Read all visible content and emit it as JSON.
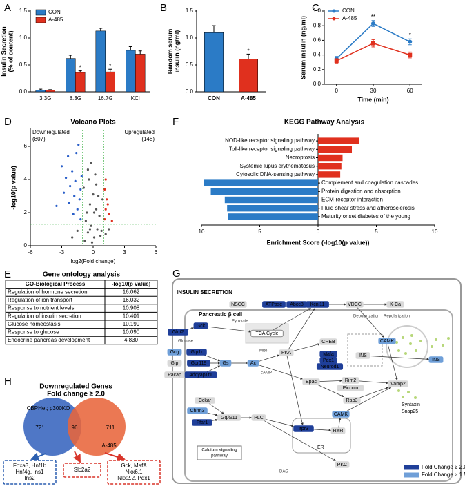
{
  "chart_data": [
    {
      "label": "A",
      "type": "bar",
      "ylabel": [
        "Insulin Secretion",
        "(% of content)"
      ],
      "categories": [
        "3.3G",
        "8.3G",
        "16.7G",
        "KCl"
      ],
      "series": [
        {
          "name": "CON",
          "color": "#2b7bc6",
          "values": [
            0.03,
            0.62,
            1.13,
            0.77
          ],
          "errors": [
            0.02,
            0.06,
            0.05,
            0.07
          ]
        },
        {
          "name": "A-485",
          "color": "#e0301e",
          "values": [
            0.03,
            0.36,
            0.37,
            0.7
          ],
          "errors": [
            0.01,
            0.03,
            0.05,
            0.06
          ]
        }
      ],
      "ylim": [
        0,
        1.5
      ],
      "yticks": [
        {
          "value": 0,
          "label": "0.0"
        },
        {
          "value": 0.5,
          "label": "0.5"
        },
        {
          "value": 1,
          "label": "1.0"
        },
        {
          "value": 1.5,
          "label": "1.5"
        }
      ],
      "legend": "upper left",
      "annotations": [
        {
          "text": "*",
          "category": "8.3G",
          "series": "A-485"
        },
        {
          "text": "*",
          "category": "16.7G",
          "series": "A-485"
        }
      ]
    },
    {
      "label": "B",
      "type": "bar",
      "ylabel": [
        "Random serum",
        "insulin (ng/ml)"
      ],
      "categories": [
        "CON",
        "A-485"
      ],
      "values": [
        1.1,
        0.61
      ],
      "errors": [
        0.13,
        0.09
      ],
      "colors": [
        "#2b7bc6",
        "#e0301e"
      ],
      "ylim": [
        0,
        1.5
      ],
      "yticks": [
        {
          "value": 0,
          "label": "0.0"
        },
        {
          "value": 0.5,
          "label": "0.5"
        },
        {
          "value": 1,
          "label": "1.0"
        },
        {
          "value": 1.5,
          "label": "1.5"
        }
      ],
      "annotations": [
        {
          "text": "*",
          "category": "A-485"
        }
      ]
    },
    {
      "label": "C",
      "type": "line",
      "ylabel": "Serum insulin (ng/ml)",
      "xlabel": "Time (min)",
      "x": [
        0,
        30,
        60
      ],
      "xlim": [
        -10,
        70
      ],
      "xticks": [
        0,
        30,
        60
      ],
      "series": [
        {
          "name": "CON",
          "color": "#2b7bc6",
          "values": [
            0.35,
            0.83,
            0.58
          ],
          "errors": [
            0.03,
            0.04,
            0.04
          ]
        },
        {
          "name": "A-485",
          "color": "#e0301e",
          "values": [
            0.32,
            0.56,
            0.4
          ],
          "errors": [
            0.03,
            0.05,
            0.04
          ]
        }
      ],
      "ylim": [
        0,
        1
      ],
      "yticks": [
        {
          "value": 0,
          "label": "0.0"
        },
        {
          "value": 0.2,
          "label": "0.2"
        },
        {
          "value": 0.4,
          "label": "0.4"
        },
        {
          "value": 0.6,
          "label": "0.6"
        },
        {
          "value": 0.8,
          "label": "0.8"
        },
        {
          "value": 1,
          "label": "1.0"
        }
      ],
      "legend": "upper left",
      "annotations": [
        {
          "text": "**",
          "x": 30
        },
        {
          "text": "*",
          "x": 60
        }
      ]
    },
    {
      "label": "D",
      "type": "scatter",
      "title": "Volcano Plots",
      "xlabel": "log2(Fold change)",
      "ylabel": "-log10(p value)",
      "xlim": [
        -6,
        6
      ],
      "xticks": [
        -6,
        -3,
        0,
        3,
        6
      ],
      "ylim": [
        0,
        7
      ],
      "yticks": [
        0,
        2,
        4,
        6
      ],
      "thresholds": {
        "x": [
          -1,
          1
        ],
        "y": 1.3,
        "color": "#3cb043"
      },
      "series": [
        {
          "color": "#555555",
          "x": [
            -0.8,
            -0.5,
            -0.2,
            0.1,
            0.4,
            0.7,
            -0.6,
            -0.3,
            0.0,
            0.3,
            0.6,
            -0.9,
            0.9,
            -0.4,
            0.2,
            -0.1,
            0.5,
            -0.7,
            0.8,
            -0.2,
            1.2,
            1.5,
            -1.5,
            -2.0,
            0.3,
            -0.5,
            0.1,
            -0.3
          ],
          "values": [
            0.3,
            0.8,
            1.2,
            0.5,
            1.0,
            0.6,
            2.0,
            2.5,
            3.1,
            2.2,
            1.8,
            3.5,
            2.8,
            4.0,
            4.3,
            0.2,
            3.0,
            1.5,
            0.9,
            5.0,
            0.7,
            1.0,
            0.9,
            0.5,
            3.7,
            4.6,
            2.0,
            1.0
          ]
        },
        {
          "color": "#2a5fc9",
          "x": [
            -1.2,
            -1.5,
            -1.8,
            -2.2,
            -2.6,
            -3.0,
            -1.3,
            -1.7,
            -2.0,
            -2.4,
            -1.1,
            -1.6,
            -2.8,
            -3.5,
            -1.4,
            -1.9,
            -1.2,
            -2.3
          ],
          "values": [
            1.6,
            2.2,
            3.0,
            3.6,
            4.1,
            4.8,
            2.8,
            3.9,
            4.5,
            5.4,
            4.2,
            5.6,
            3.2,
            2.4,
            6.1,
            1.9,
            3.4,
            2.6
          ]
        },
        {
          "color": "#e0301e",
          "x": [
            1.1,
            1.2,
            1.3,
            1.5,
            1.1,
            1.4,
            1.2,
            1.8
          ],
          "values": [
            1.6,
            2.2,
            2.8,
            1.9,
            3.4,
            2.5,
            4.0,
            1.5
          ]
        }
      ],
      "annotations": [
        {
          "text": [
            "Downregulated",
            "(807)"
          ],
          "color": "#2a6fc9",
          "position": "upper left"
        },
        {
          "text": [
            "Upregulated",
            "(148)"
          ],
          "color": "#e0301e",
          "position": "upper right"
        }
      ]
    },
    {
      "label": "F",
      "type": "barh",
      "title": "KEGG Pathway Analysis",
      "xlabel": "Enrichment Score (-log10(p value))",
      "categories": [
        "NOD-like receptor signaling pathway",
        "Toll-like receptor signaling pathway",
        "Necroptosis",
        "Systemic lupus erythematosus",
        "Cytosolic DNA-sensing pathway",
        "Complement and coagulation cascades",
        "Protein digestion and absorption",
        "ECM-receptor interaction",
        "Fluid shear stress and atherosclerosis",
        "Maturity onset diabetes of the young"
      ],
      "values": [
        3.5,
        2.9,
        2.1,
        2.0,
        1.9,
        -9.8,
        -9.2,
        -8.0,
        -7.8,
        -7.7
      ],
      "color_positive": "#e0301e",
      "color_negative": "#2b7bc6",
      "xlim": [
        -10,
        10
      ],
      "xticks": [
        {
          "value": -10,
          "label": "10"
        },
        {
          "value": -5,
          "label": "5"
        },
        0,
        5,
        10
      ]
    }
  ],
  "table": {
    "label": "E",
    "title": "Gene ontology analysis",
    "header": [
      "GO-Biological Process",
      "-log10(p value)"
    ],
    "rows": [
      [
        "Regulation of hormone secretion",
        "16.062"
      ],
      [
        "Regulation of ion transport",
        "16.032"
      ],
      [
        "Response to nutrient levels",
        "10.908"
      ],
      [
        "Regulation of insulin secretion",
        "10.401"
      ],
      [
        "Glucose homeostasis",
        "10.199"
      ],
      [
        "Response to glucose",
        "10.090"
      ],
      [
        "Endocrine pancreas development",
        "4.830"
      ]
    ]
  },
  "venn": {
    "label": "H",
    "title": "Downregulated Genes",
    "subtitle": "Fold change ≥ 2.0",
    "sets": [
      {
        "name": "CBPHet; p300KO",
        "count": "721",
        "color": "#4f77c6"
      },
      {
        "name": "A-485",
        "count": "711",
        "color": "#e8653b"
      }
    ],
    "overlap": "96",
    "gene_lists": [
      [
        "Foxa3, Hnf1b",
        "Hnf4g, Ins1",
        "Ins2"
      ],
      [
        "Slc2a2"
      ],
      [
        "Gck, MafA",
        "Nkx6.1",
        "Nkx2.2, Pdx1"
      ]
    ]
  },
  "pathway": {
    "label": "G",
    "title": "INSULIN SECRETION",
    "cell": "Pancreatic β cell",
    "nodes": [
      {
        "label": "NSCC",
        "color": "#d9d9d9"
      },
      {
        "label": "ATPase",
        "color": "#1f3f99"
      },
      {
        "label": "Abcc8",
        "color": "#1f3f99"
      },
      {
        "label": "Kcnj11",
        "color": "#1f3f99"
      },
      {
        "label": "VDCC",
        "color": "#d9d9d9"
      },
      {
        "label": "K-Ca",
        "color": "#d9d9d9"
      },
      {
        "label": "Gck",
        "color": "#1f3f99"
      },
      {
        "label": "Glut2",
        "color": "#1f3f99"
      },
      {
        "label": "TCA Cycle",
        "color": "#ffffff"
      },
      {
        "label": "CAMK",
        "color": "#6f9fd8"
      },
      {
        "label": "INS",
        "color": "#6f9fd8"
      },
      {
        "label": "Gcg",
        "color": "#6f9fd8"
      },
      {
        "label": "Glp1r",
        "color": "#1f3f99"
      },
      {
        "label": "Gip",
        "color": "#d9d9d9"
      },
      {
        "label": "Gpr119",
        "color": "#1f3f99"
      },
      {
        "label": "Gs",
        "color": "#6f9fd8"
      },
      {
        "label": "Ac",
        "color": "#6f9fd8"
      },
      {
        "label": "PKA",
        "color": "#d9d9d9"
      },
      {
        "label": "CREB",
        "color": "#d9d9d9"
      },
      {
        "label": "Mafa",
        "color": "#1f3f99"
      },
      {
        "label": "Pdx1",
        "color": "#1f3f99"
      },
      {
        "label": "Neurod1",
        "color": "#1f3f99"
      },
      {
        "label": "INS",
        "color": "#d9d9d9"
      },
      {
        "label": "Pacap",
        "color": "#d9d9d9"
      },
      {
        "label": "Adcyap1r1",
        "color": "#1f3f99"
      },
      {
        "label": "Epac",
        "color": "#d9d9d9"
      },
      {
        "label": "Rim2",
        "color": "#d9d9d9"
      },
      {
        "label": "Piccolo",
        "color": "#d9d9d9"
      },
      {
        "label": "Rab3",
        "color": "#d9d9d9"
      },
      {
        "label": "Vamp2",
        "color": "#d9d9d9"
      },
      {
        "label": "CAMK",
        "color": "#6f9fd8"
      },
      {
        "label": "Cckar",
        "color": "#d9d9d9"
      },
      {
        "label": "Chrm3",
        "color": "#6f9fd8"
      },
      {
        "label": "Ffar1",
        "color": "#1f3f99"
      },
      {
        "label": "Gq/G11",
        "color": "#d9d9d9"
      },
      {
        "label": "PLC",
        "color": "#d9d9d9"
      },
      {
        "label": "Itpr3",
        "color": "#1f3f99"
      },
      {
        "label": "RYR",
        "color": "#d9d9d9"
      },
      {
        "label": "PKC",
        "color": "#d9d9d9"
      }
    ],
    "texts": [
      "Syntaxin",
      "Snap25",
      "ER",
      "Glucose",
      "Pyruvate",
      "Mito",
      "cAMP",
      "Depolarization",
      "Repolarization",
      "DAG",
      "Calcium signaling",
      "pathway"
    ],
    "legend": [
      {
        "label": "Fold Change ≥ 2.0",
        "color": "#1f3f99"
      },
      {
        "label": "Fold Change ≥ 1.5",
        "color": "#6f9fd8"
      }
    ]
  }
}
